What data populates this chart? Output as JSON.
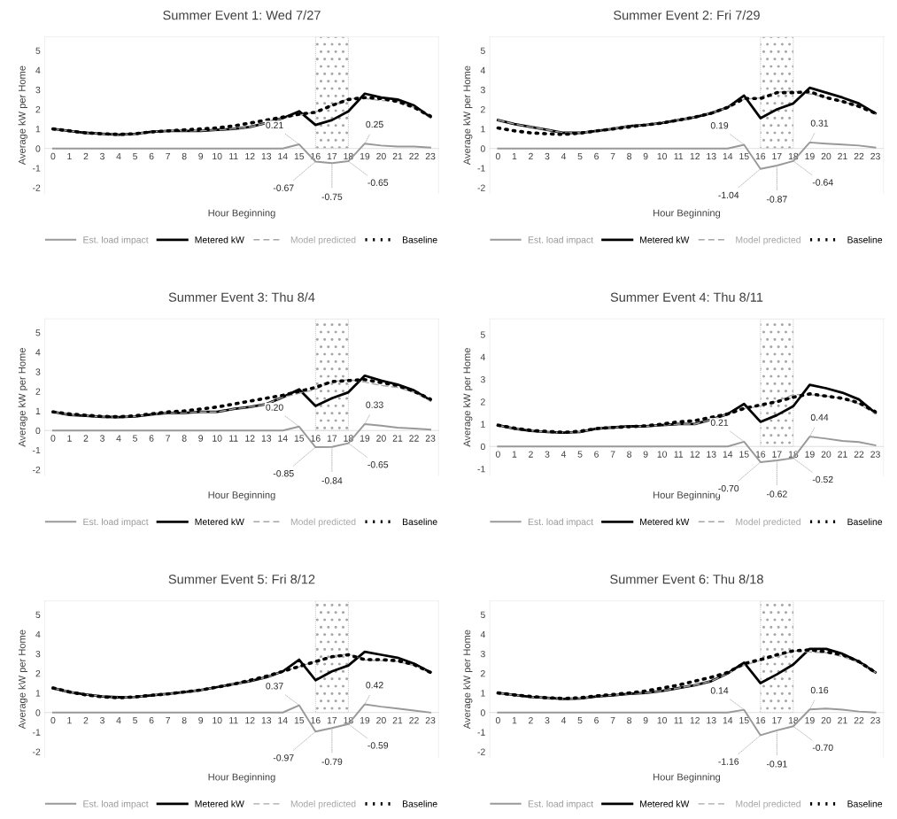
{
  "chart_data": [
    {
      "type": "line",
      "title": "Summer Event 1: Wed 7/27",
      "xlabel": "Hour Beginning",
      "ylabel": "Average kW per Home",
      "categories": [
        "0",
        "1",
        "2",
        "3",
        "4",
        "5",
        "6",
        "7",
        "8",
        "9",
        "10",
        "11",
        "12",
        "13",
        "14",
        "15",
        "16",
        "17",
        "18",
        "19",
        "20",
        "21",
        "22",
        "23"
      ],
      "ylim": [
        -2.3,
        5.7
      ],
      "yticks": [
        -2,
        -1,
        0,
        1,
        2,
        3,
        4,
        5
      ],
      "legend": "bottom",
      "grid": false,
      "bands": [
        {
          "axis": "x",
          "from": "16",
          "to": "18",
          "color": "#a6a6a6"
        }
      ],
      "series": [
        {
          "name": "Est. load impact",
          "color": "#999999",
          "line_style": "solid",
          "values": [
            0,
            0,
            0,
            0,
            0,
            0,
            0,
            0,
            0,
            0,
            0,
            0,
            0,
            0,
            0,
            0.21,
            -0.67,
            -0.75,
            -0.65,
            0.25,
            0.15,
            0.1,
            0.1,
            0.05
          ],
          "value_labels": [
            null,
            null,
            null,
            null,
            null,
            null,
            null,
            null,
            null,
            null,
            null,
            null,
            null,
            null,
            null,
            "0.21",
            "-0.67",
            "-0.75",
            "-0.65",
            "0.25",
            null,
            null,
            null,
            null
          ]
        },
        {
          "name": "Metered kW",
          "color": "#000000",
          "line_style": "solid",
          "values": [
            1.0,
            0.9,
            0.8,
            0.75,
            0.7,
            0.75,
            0.85,
            0.9,
            0.9,
            0.9,
            0.95,
            1.0,
            1.1,
            1.3,
            1.55,
            1.9,
            1.2,
            1.45,
            1.9,
            2.8,
            2.6,
            2.5,
            2.2,
            1.6
          ]
        },
        {
          "name": "Model predicted",
          "color": "#a6a6a6",
          "line_style": "dashed",
          "values": [
            1.0,
            0.9,
            0.8,
            0.75,
            0.7,
            0.75,
            0.85,
            0.9,
            0.9,
            0.9,
            0.95,
            1.0,
            1.1,
            1.3,
            1.55,
            1.7,
            1.87,
            2.2,
            2.55,
            2.55,
            2.45,
            2.4,
            2.1,
            1.55
          ]
        },
        {
          "name": "Baseline",
          "color": "#000000",
          "line_style": "dotted",
          "values": [
            1.0,
            0.9,
            0.8,
            0.75,
            0.72,
            0.75,
            0.85,
            0.9,
            0.95,
            1.0,
            1.05,
            1.15,
            1.3,
            1.45,
            1.6,
            1.75,
            1.85,
            2.2,
            2.5,
            2.6,
            2.55,
            2.4,
            2.1,
            1.65
          ]
        }
      ]
    },
    {
      "type": "line",
      "title": "Summer Event 2: Fri 7/29",
      "xlabel": "Hour Beginning",
      "ylabel": "Average kW per Home",
      "categories": [
        "0",
        "1",
        "2",
        "3",
        "4",
        "5",
        "6",
        "7",
        "8",
        "9",
        "10",
        "11",
        "12",
        "13",
        "14",
        "15",
        "16",
        "17",
        "18",
        "19",
        "20",
        "21",
        "22",
        "23"
      ],
      "ylim": [
        -2.3,
        5.7
      ],
      "yticks": [
        -2,
        -1,
        0,
        1,
        2,
        3,
        4,
        5
      ],
      "legend": "bottom",
      "grid": false,
      "bands": [
        {
          "axis": "x",
          "from": "16",
          "to": "18",
          "color": "#a6a6a6"
        }
      ],
      "series": [
        {
          "name": "Est. load impact",
          "color": "#999999",
          "line_style": "solid",
          "values": [
            0,
            0,
            0,
            0,
            0,
            0,
            0,
            0,
            0,
            0,
            0,
            0,
            0,
            0,
            0,
            0.19,
            -1.04,
            -0.87,
            -0.64,
            0.31,
            0.25,
            0.2,
            0.15,
            0.05
          ],
          "value_labels": [
            null,
            null,
            null,
            null,
            null,
            null,
            null,
            null,
            null,
            null,
            null,
            null,
            null,
            null,
            null,
            "0.19",
            "-1.04",
            "-0.87",
            "-0.64",
            "0.31",
            null,
            null,
            null,
            null
          ]
        },
        {
          "name": "Metered kW",
          "color": "#000000",
          "line_style": "solid",
          "values": [
            1.45,
            1.25,
            1.1,
            0.95,
            0.8,
            0.8,
            0.9,
            1.0,
            1.15,
            1.2,
            1.3,
            1.45,
            1.6,
            1.8,
            2.1,
            2.7,
            1.55,
            2.0,
            2.3,
            3.1,
            2.85,
            2.6,
            2.3,
            1.8
          ]
        },
        {
          "name": "Model predicted",
          "color": "#a6a6a6",
          "line_style": "dashed",
          "values": [
            1.45,
            1.25,
            1.1,
            0.95,
            0.8,
            0.8,
            0.9,
            1.0,
            1.15,
            1.2,
            1.3,
            1.45,
            1.6,
            1.8,
            2.1,
            2.51,
            2.59,
            2.87,
            2.94,
            2.79,
            2.6,
            2.4,
            2.15,
            1.75
          ]
        },
        {
          "name": "Baseline",
          "color": "#000000",
          "line_style": "dotted",
          "values": [
            1.05,
            0.9,
            0.8,
            0.75,
            0.72,
            0.78,
            0.9,
            1.0,
            1.1,
            1.2,
            1.3,
            1.45,
            1.6,
            1.8,
            2.1,
            2.55,
            2.55,
            2.85,
            2.85,
            2.9,
            2.6,
            2.4,
            2.15,
            1.8
          ]
        }
      ]
    },
    {
      "type": "line",
      "title": "Summer Event 3: Thu 8/4",
      "xlabel": "Hour Beginning",
      "ylabel": "Average kW per Home",
      "categories": [
        "0",
        "1",
        "2",
        "3",
        "4",
        "5",
        "6",
        "7",
        "8",
        "9",
        "10",
        "11",
        "12",
        "13",
        "14",
        "15",
        "16",
        "17",
        "18",
        "19",
        "20",
        "21",
        "22",
        "23"
      ],
      "ylim": [
        -2.3,
        5.7
      ],
      "yticks": [
        -2,
        -1,
        0,
        1,
        2,
        3,
        4,
        5
      ],
      "legend": "bottom",
      "grid": false,
      "bands": [
        {
          "axis": "x",
          "from": "16",
          "to": "18",
          "color": "#a6a6a6"
        }
      ],
      "series": [
        {
          "name": "Est. load impact",
          "color": "#999999",
          "line_style": "solid",
          "values": [
            0,
            0,
            0,
            0,
            0,
            0,
            0,
            0,
            0,
            0,
            0,
            0,
            0,
            0,
            0,
            0.2,
            -0.85,
            -0.84,
            -0.65,
            0.33,
            0.25,
            0.15,
            0.1,
            0.05
          ],
          "value_labels": [
            null,
            null,
            null,
            null,
            null,
            null,
            null,
            null,
            null,
            null,
            null,
            null,
            null,
            null,
            null,
            "0.20",
            "-0.85",
            "-0.84",
            "-0.65",
            "0.33",
            null,
            null,
            null,
            null
          ]
        },
        {
          "name": "Metered kW",
          "color": "#000000",
          "line_style": "solid",
          "values": [
            0.95,
            0.8,
            0.75,
            0.7,
            0.68,
            0.72,
            0.82,
            0.9,
            0.9,
            0.95,
            0.95,
            1.1,
            1.2,
            1.35,
            1.7,
            2.1,
            1.25,
            1.65,
            1.95,
            2.8,
            2.55,
            2.35,
            2.05,
            1.55
          ]
        },
        {
          "name": "Model predicted",
          "color": "#a6a6a6",
          "line_style": "dashed",
          "values": [
            0.95,
            0.8,
            0.75,
            0.7,
            0.68,
            0.72,
            0.82,
            0.9,
            0.9,
            0.95,
            0.95,
            1.1,
            1.2,
            1.35,
            1.7,
            1.9,
            2.1,
            2.49,
            2.6,
            2.47,
            2.3,
            2.2,
            1.95,
            1.5
          ]
        },
        {
          "name": "Baseline",
          "color": "#000000",
          "line_style": "dotted",
          "values": [
            0.95,
            0.85,
            0.78,
            0.72,
            0.7,
            0.75,
            0.85,
            0.95,
            1.0,
            1.1,
            1.2,
            1.35,
            1.5,
            1.65,
            1.8,
            2.0,
            2.2,
            2.5,
            2.55,
            2.6,
            2.45,
            2.3,
            2.0,
            1.6
          ]
        }
      ]
    },
    {
      "type": "line",
      "title": "Summer Event 4: Thu 8/11",
      "xlabel": "Hour Beginning",
      "ylabel": "Average kW per Home",
      "categories": [
        "0",
        "1",
        "2",
        "3",
        "4",
        "5",
        "6",
        "7",
        "8",
        "9",
        "10",
        "11",
        "12",
        "13",
        "14",
        "15",
        "16",
        "17",
        "18",
        "19",
        "20",
        "21",
        "22",
        "23"
      ],
      "ylim": [
        -1.3,
        5.7
      ],
      "yticks": [
        -1,
        0,
        1,
        2,
        3,
        4,
        5
      ],
      "legend": "bottom",
      "grid": false,
      "bands": [
        {
          "axis": "x",
          "from": "16",
          "to": "18",
          "color": "#a6a6a6"
        }
      ],
      "series": [
        {
          "name": "Est. load impact",
          "color": "#999999",
          "line_style": "solid",
          "values": [
            0,
            0,
            0,
            0,
            0,
            0,
            0,
            0,
            0,
            0,
            0,
            0,
            0,
            0,
            0,
            0.21,
            -0.7,
            -0.62,
            -0.52,
            0.44,
            0.35,
            0.25,
            0.2,
            0.05
          ],
          "value_labels": [
            null,
            null,
            null,
            null,
            null,
            null,
            null,
            null,
            null,
            null,
            null,
            null,
            null,
            null,
            null,
            "0.21",
            "-0.70",
            "-0.62",
            "-0.52",
            "0.44",
            null,
            null,
            null,
            null
          ]
        },
        {
          "name": "Metered kW",
          "color": "#000000",
          "line_style": "solid",
          "values": [
            0.95,
            0.8,
            0.7,
            0.65,
            0.62,
            0.65,
            0.8,
            0.85,
            0.9,
            0.9,
            0.95,
            1.0,
            1.0,
            1.2,
            1.45,
            1.9,
            1.1,
            1.4,
            1.8,
            2.75,
            2.6,
            2.4,
            2.1,
            1.5
          ]
        },
        {
          "name": "Model predicted",
          "color": "#a6a6a6",
          "line_style": "dashed",
          "values": [
            0.95,
            0.8,
            0.7,
            0.65,
            0.62,
            0.65,
            0.8,
            0.85,
            0.9,
            0.9,
            0.95,
            1.0,
            1.0,
            1.2,
            1.45,
            1.69,
            1.8,
            2.02,
            2.32,
            2.31,
            2.25,
            2.15,
            1.9,
            1.45
          ]
        },
        {
          "name": "Baseline",
          "color": "#000000",
          "line_style": "dotted",
          "values": [
            0.95,
            0.82,
            0.72,
            0.67,
            0.63,
            0.68,
            0.8,
            0.85,
            0.88,
            0.92,
            1.0,
            1.1,
            1.15,
            1.3,
            1.45,
            1.7,
            1.85,
            2.0,
            2.2,
            2.35,
            2.25,
            2.15,
            1.95,
            1.55
          ]
        }
      ]
    },
    {
      "type": "line",
      "title": "Summer Event 5: Fri 8/12",
      "xlabel": "Hour Beginning",
      "ylabel": "Average kW per Home",
      "categories": [
        "0",
        "1",
        "2",
        "3",
        "4",
        "5",
        "6",
        "7",
        "8",
        "9",
        "10",
        "11",
        "12",
        "13",
        "14",
        "15",
        "16",
        "17",
        "18",
        "19",
        "20",
        "21",
        "22",
        "23"
      ],
      "ylim": [
        -2.3,
        5.7
      ],
      "yticks": [
        -2,
        -1,
        0,
        1,
        2,
        3,
        4,
        5
      ],
      "legend": "bottom",
      "grid": false,
      "bands": [
        {
          "axis": "x",
          "from": "16",
          "to": "18",
          "color": "#a6a6a6"
        }
      ],
      "series": [
        {
          "name": "Est. load impact",
          "color": "#999999",
          "line_style": "solid",
          "values": [
            0,
            0,
            0,
            0,
            0,
            0,
            0,
            0,
            0,
            0,
            0,
            0,
            0,
            0,
            0,
            0.37,
            -0.97,
            -0.79,
            -0.59,
            0.42,
            0.3,
            0.2,
            0.1,
            0.0
          ],
          "value_labels": [
            null,
            null,
            null,
            null,
            null,
            null,
            null,
            null,
            null,
            null,
            null,
            null,
            null,
            null,
            null,
            "0.37",
            "-0.97",
            "-0.79",
            "-0.59",
            "0.42",
            null,
            null,
            null,
            null
          ]
        },
        {
          "name": "Metered kW",
          "color": "#000000",
          "line_style": "solid",
          "values": [
            1.25,
            1.05,
            0.92,
            0.82,
            0.78,
            0.8,
            0.88,
            0.95,
            1.05,
            1.15,
            1.3,
            1.45,
            1.6,
            1.8,
            2.1,
            2.7,
            1.65,
            2.1,
            2.4,
            3.1,
            2.95,
            2.8,
            2.5,
            2.05
          ]
        },
        {
          "name": "Model predicted",
          "color": "#a6a6a6",
          "line_style": "dashed",
          "values": [
            1.25,
            1.05,
            0.92,
            0.82,
            0.78,
            0.8,
            0.88,
            0.95,
            1.05,
            1.15,
            1.3,
            1.45,
            1.6,
            1.8,
            2.1,
            2.33,
            2.62,
            2.89,
            2.99,
            2.68,
            2.65,
            2.6,
            2.4,
            2.05
          ]
        },
        {
          "name": "Baseline",
          "color": "#000000",
          "line_style": "dotted",
          "values": [
            1.25,
            1.05,
            0.9,
            0.8,
            0.75,
            0.8,
            0.88,
            0.95,
            1.05,
            1.15,
            1.3,
            1.45,
            1.65,
            1.85,
            2.1,
            2.35,
            2.6,
            2.85,
            2.95,
            2.7,
            2.7,
            2.65,
            2.45,
            2.05
          ]
        }
      ]
    },
    {
      "type": "line",
      "title": "Summer Event 6: Thu 8/18",
      "xlabel": "Hour Beginning",
      "ylabel": "Average kW per Home",
      "categories": [
        "0",
        "1",
        "2",
        "3",
        "4",
        "5",
        "6",
        "7",
        "8",
        "9",
        "10",
        "11",
        "12",
        "13",
        "14",
        "15",
        "16",
        "17",
        "18",
        "19",
        "20",
        "21",
        "22",
        "23"
      ],
      "ylim": [
        -2.3,
        5.7
      ],
      "yticks": [
        -2,
        -1,
        0,
        1,
        2,
        3,
        4,
        5
      ],
      "legend": "bottom",
      "grid": false,
      "bands": [
        {
          "axis": "x",
          "from": "16",
          "to": "18",
          "color": "#a6a6a6"
        }
      ],
      "series": [
        {
          "name": "Est. load impact",
          "color": "#999999",
          "line_style": "solid",
          "values": [
            0,
            0,
            0,
            0,
            0,
            0,
            0,
            0,
            0,
            0,
            0,
            0,
            0,
            0,
            0,
            0.14,
            -1.16,
            -0.91,
            -0.7,
            0.16,
            0.2,
            0.15,
            0.05,
            0.0
          ],
          "value_labels": [
            null,
            null,
            null,
            null,
            null,
            null,
            null,
            null,
            null,
            null,
            null,
            null,
            null,
            null,
            null,
            "0.14",
            "-1.16",
            "-0.91",
            "-0.70",
            "0.16",
            null,
            null,
            null,
            null
          ]
        },
        {
          "name": "Metered kW",
          "color": "#000000",
          "line_style": "solid",
          "values": [
            1.0,
            0.9,
            0.8,
            0.75,
            0.7,
            0.72,
            0.82,
            0.88,
            0.95,
            1.0,
            1.1,
            1.25,
            1.4,
            1.6,
            2.0,
            2.55,
            1.5,
            1.95,
            2.45,
            3.25,
            3.25,
            3.0,
            2.6,
            2.05
          ]
        },
        {
          "name": "Model predicted",
          "color": "#a6a6a6",
          "line_style": "dashed",
          "values": [
            1.0,
            0.9,
            0.8,
            0.75,
            0.7,
            0.72,
            0.82,
            0.88,
            0.95,
            1.0,
            1.1,
            1.25,
            1.4,
            1.6,
            2.0,
            2.41,
            2.66,
            2.86,
            3.15,
            3.09,
            3.05,
            2.85,
            2.55,
            2.05
          ]
        },
        {
          "name": "Baseline",
          "color": "#000000",
          "line_style": "dotted",
          "values": [
            1.0,
            0.9,
            0.82,
            0.75,
            0.72,
            0.75,
            0.85,
            0.92,
            1.0,
            1.1,
            1.25,
            1.4,
            1.6,
            1.8,
            2.05,
            2.5,
            2.7,
            2.95,
            3.15,
            3.2,
            3.1,
            2.95,
            2.6,
            2.05
          ]
        }
      ]
    }
  ]
}
